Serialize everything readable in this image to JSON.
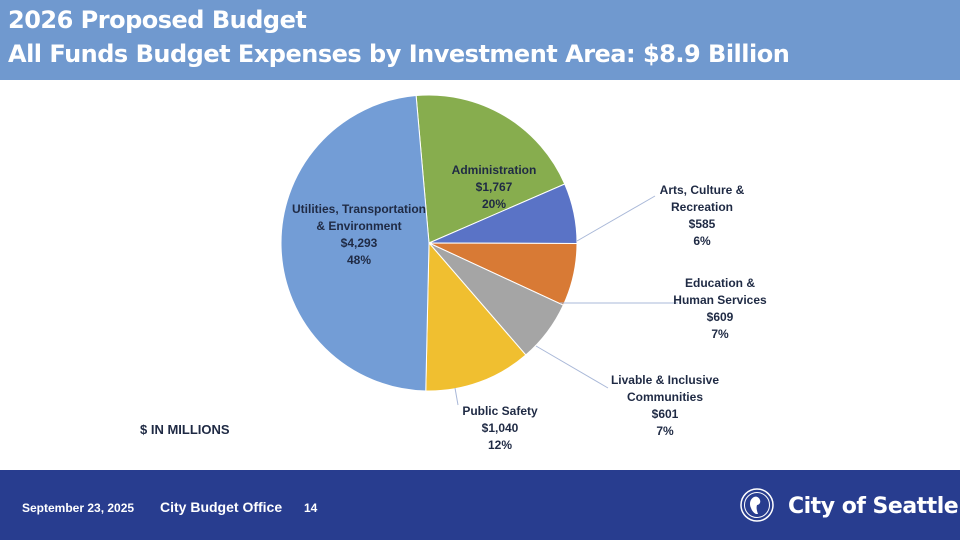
{
  "slide": {
    "title_line1": "2026 Proposed Budget",
    "title_line2": "All Funds Budget Expenses by Investment Area: $8.9 Billion",
    "unit_note": "$ IN MILLIONS"
  },
  "footer": {
    "date": "September 23, 2025",
    "office": "City Budget Office",
    "page": "14",
    "org_name": "City of Seattle"
  },
  "colors": {
    "header_bg": "#7099cf",
    "footer_bg": "#283d8f"
  },
  "chart_data": {
    "type": "pie",
    "title": "All Funds Budget Expenses by Investment Area: $8.9 Billion",
    "unit": "$ IN MILLIONS",
    "slices": [
      {
        "label": [
          "Administration"
        ],
        "value": 1767,
        "value_label": "$1,767",
        "percent": "20%",
        "color": "#87ad4e"
      },
      {
        "label": [
          "Arts, Culture &",
          "Recreation"
        ],
        "value": 585,
        "value_label": "$585",
        "percent": "6%",
        "color": "#5a73c6"
      },
      {
        "label": [
          "Education &",
          "Human Services"
        ],
        "value": 609,
        "value_label": "$609",
        "percent": "7%",
        "color": "#d87a35"
      },
      {
        "label": [
          "Livable & Inclusive",
          "Communities"
        ],
        "value": 601,
        "value_label": "$601",
        "percent": "7%",
        "color": "#a5a5a5"
      },
      {
        "label": [
          "Public Safety"
        ],
        "value": 1040,
        "value_label": "$1,040",
        "percent": "12%",
        "color": "#f0bf30"
      },
      {
        "label": [
          "Utilities, Transportation",
          "& Environment"
        ],
        "value": 4293,
        "value_label": "$4,293",
        "percent": "48%",
        "color": "#739dd6"
      }
    ]
  }
}
